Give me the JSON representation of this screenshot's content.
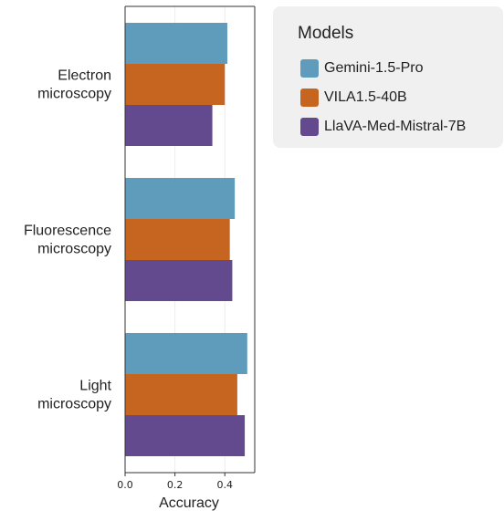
{
  "chart_data": {
    "type": "bar",
    "orientation": "horizontal",
    "categories": [
      "Electron microscopy",
      "Fluorescence microscopy",
      "Light microscopy"
    ],
    "category_lines": [
      [
        "Electron",
        "microscopy"
      ],
      [
        "Fluorescence",
        "microscopy"
      ],
      [
        "Light",
        "microscopy"
      ]
    ],
    "series": [
      {
        "name": "Gemini-1.5-Pro",
        "color": "#5f9bbb",
        "values": [
          0.41,
          0.44,
          0.49
        ]
      },
      {
        "name": "VILA1.5-40B",
        "color": "#c6651f",
        "values": [
          0.4,
          0.42,
          0.45
        ]
      },
      {
        "name": "LlaVA-Med-Mistral-7B",
        "color": "#634a8e",
        "values": [
          0.35,
          0.43,
          0.48
        ]
      }
    ],
    "xlabel": "Accuracy",
    "ylabel": "",
    "xlim": [
      0,
      0.52
    ],
    "xticks": [
      0.0,
      0.2,
      0.4
    ],
    "xtick_labels": [
      "0.0",
      "0.2",
      "0.4"
    ],
    "grid": true,
    "legend": {
      "title": "Models",
      "placement": "outside-top-right"
    }
  }
}
